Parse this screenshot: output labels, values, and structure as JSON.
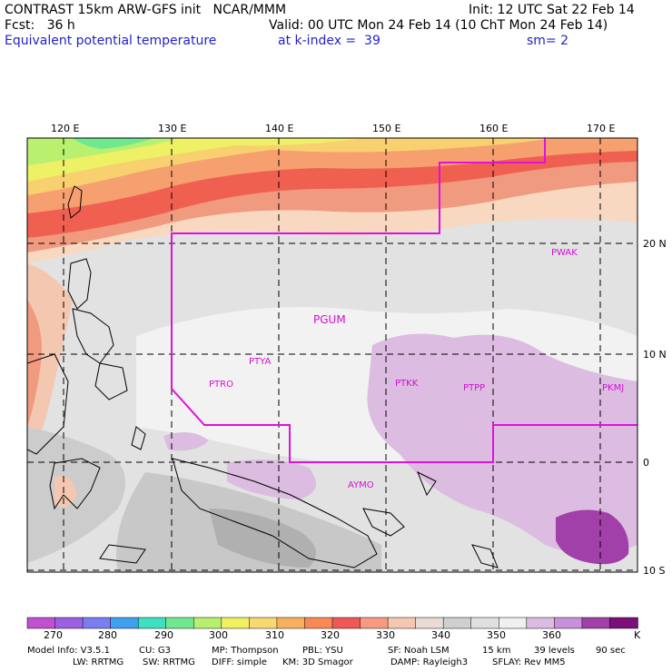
{
  "header": {
    "line1_left": "CONTRAST 15km ARW-GFS init   NCAR/MMM",
    "line1_right": "Init: 12 UTC Sat 22 Feb 14",
    "line2_left": "Fcst:   36 h",
    "line2_right": "Valid: 00 UTC Mon 24 Feb 14 (10 ChT Mon 24 Feb 14)",
    "line3_left": "Equivalent potential temperature",
    "line3_mid": "at k-index =  39",
    "line3_right": "sm= 2"
  },
  "axes": {
    "lon_labels": [
      "120 E",
      "130 E",
      "140 E",
      "150 E",
      "160 E",
      "170 E"
    ],
    "lat_labels": [
      "20 N",
      "10 N",
      "0",
      "10 S"
    ]
  },
  "stations": [
    "PWAK",
    "PGUM",
    "PTYA",
    "PTRO",
    "PTKK",
    "PTPP",
    "PKMJ",
    "AYMO"
  ],
  "colorbar": {
    "labels": [
      "270",
      "280",
      "290",
      "300",
      "310",
      "320",
      "330",
      "340",
      "350",
      "360"
    ],
    "unit": "K",
    "colors": [
      "#c050d0",
      "#9b5fe0",
      "#7b7ef0",
      "#3fa0f0",
      "#3fe0c0",
      "#6fe890",
      "#b7f070",
      "#f0f060",
      "#f8d870",
      "#f8b060",
      "#f88858",
      "#f05858",
      "#f89a80",
      "#f4c8b0",
      "#e8dcd4",
      "#d0d0d0",
      "#e0e0e0",
      "#f0f0f0",
      "#dcbce0",
      "#c890d8",
      "#a040a8",
      "#7a1078"
    ]
  },
  "footer": {
    "row1": [
      "Model Info: V3.5.1",
      "CU: G3",
      "MP: Thompson",
      "PBL: YSU",
      "SF: Noah LSM",
      "15 km",
      "39 levels",
      "90 sec"
    ],
    "row2": [
      "LW: RRTMG",
      "SW: RRTMG",
      "DIFF: simple",
      "KM: 3D Smagor",
      "DAMP: Rayleigh3",
      "SFLAY: Rev MM5"
    ]
  }
}
